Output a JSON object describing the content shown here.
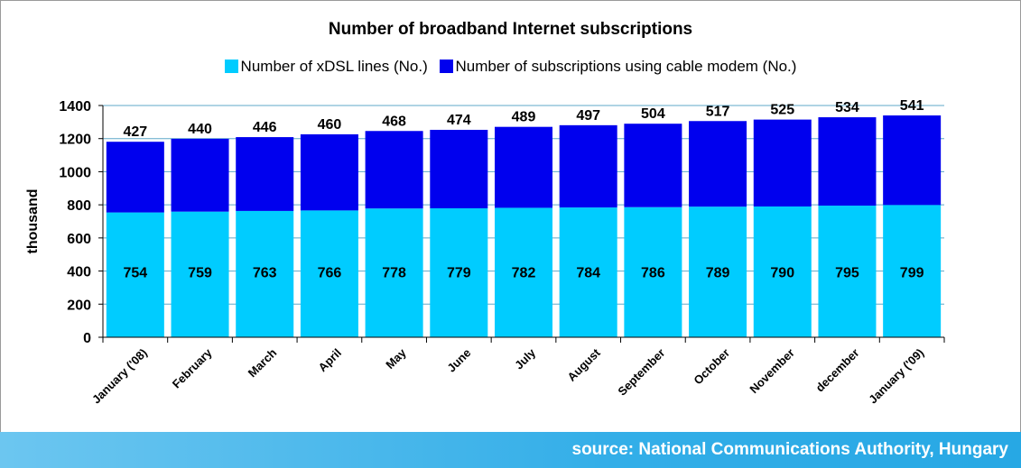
{
  "chart_data": {
    "type": "bar",
    "stacked": true,
    "title": "Number of broadband Internet subscriptions",
    "ylabel": "thousand",
    "ylim": [
      0,
      1400
    ],
    "yticks": [
      0,
      200,
      400,
      600,
      800,
      1000,
      1200,
      1400
    ],
    "grid": true,
    "legend_position": "top",
    "categories": [
      "January ('08)",
      "February",
      "March",
      "April",
      "May",
      "June",
      "July",
      "August",
      "September",
      "October",
      "November",
      "december",
      "January ('09)"
    ],
    "series": [
      {
        "name": "Number of xDSL lines (No.)",
        "color": "#00ccff",
        "values": [
          754,
          759,
          763,
          766,
          778,
          779,
          782,
          784,
          786,
          789,
          790,
          795,
          799
        ]
      },
      {
        "name": "Number of subscriptions using cable modem (No.)",
        "color": "#0000ee",
        "values": [
          427,
          440,
          446,
          460,
          468,
          474,
          489,
          497,
          504,
          517,
          525,
          534,
          541
        ]
      }
    ]
  },
  "footer": {
    "source": "source: National Communications Authority, Hungary"
  }
}
